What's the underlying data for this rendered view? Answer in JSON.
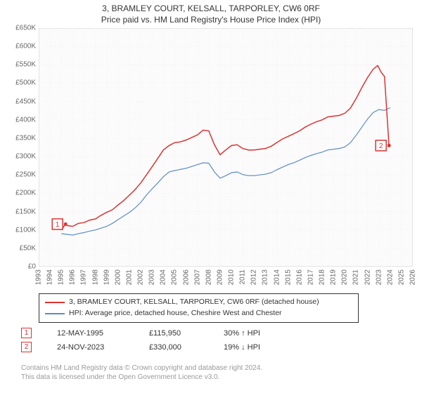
{
  "title_line1": "3, BRAMLEY COURT, KELSALL, TARPORLEY, CW6 0RF",
  "title_line2": "Price paid vs. HM Land Registry's House Price Index (HPI)",
  "chart": {
    "type": "line",
    "background_color": "#ffffff",
    "plot_fill": "#fbfbfb",
    "grid_color": "#f0f0f0",
    "grid_dash": "1 3",
    "border_color": "#cccccc",
    "axis_font_size": 10,
    "axis_color": "#666666",
    "xlim": [
      1993,
      2026
    ],
    "ylim": [
      0,
      650000
    ],
    "ytick_step": 50000,
    "ytick_labels": [
      "£0",
      "£50K",
      "£100K",
      "£150K",
      "£200K",
      "£250K",
      "£300K",
      "£350K",
      "£400K",
      "£450K",
      "£500K",
      "£550K",
      "£600K",
      "£650K"
    ],
    "xtick_step": 1,
    "xtick_labels": [
      "1993",
      "1994",
      "1995",
      "1996",
      "1997",
      "1998",
      "1999",
      "2000",
      "2001",
      "2002",
      "2003",
      "2004",
      "2005",
      "2006",
      "2007",
      "2008",
      "2009",
      "2010",
      "2011",
      "2012",
      "2013",
      "2014",
      "2015",
      "2016",
      "2017",
      "2018",
      "2019",
      "2020",
      "2021",
      "2022",
      "2023",
      "2024",
      "2025",
      "2026"
    ],
    "series": [
      {
        "name": "property",
        "label": "3, BRAMLEY COURT, KELSALL, TARPORLEY, CW6 0RF (detached house)",
        "color": "#dc3333",
        "line_width": 1.5,
        "data": [
          [
            1995.0,
            100000
          ],
          [
            1995.37,
            115950
          ],
          [
            1995.5,
            112000
          ],
          [
            1996.0,
            110000
          ],
          [
            1996.5,
            118000
          ],
          [
            1997.0,
            120000
          ],
          [
            1997.5,
            127000
          ],
          [
            1998.0,
            130000
          ],
          [
            1998.5,
            140000
          ],
          [
            1999.0,
            148000
          ],
          [
            1999.5,
            155000
          ],
          [
            2000.0,
            168000
          ],
          [
            2000.5,
            180000
          ],
          [
            2001.0,
            195000
          ],
          [
            2001.5,
            210000
          ],
          [
            2002.0,
            228000
          ],
          [
            2002.5,
            250000
          ],
          [
            2003.0,
            272000
          ],
          [
            2003.5,
            295000
          ],
          [
            2004.0,
            318000
          ],
          [
            2004.5,
            330000
          ],
          [
            2005.0,
            338000
          ],
          [
            2005.5,
            340000
          ],
          [
            2006.0,
            345000
          ],
          [
            2006.5,
            352000
          ],
          [
            2007.0,
            359000
          ],
          [
            2007.5,
            372000
          ],
          [
            2008.0,
            370000
          ],
          [
            2008.5,
            332000
          ],
          [
            2009.0,
            305000
          ],
          [
            2009.5,
            318000
          ],
          [
            2010.0,
            330000
          ],
          [
            2010.5,
            332000
          ],
          [
            2011.0,
            322000
          ],
          [
            2011.5,
            318000
          ],
          [
            2012.0,
            318000
          ],
          [
            2012.5,
            320000
          ],
          [
            2013.0,
            322000
          ],
          [
            2013.5,
            328000
          ],
          [
            2014.0,
            338000
          ],
          [
            2014.5,
            348000
          ],
          [
            2015.0,
            355000
          ],
          [
            2015.5,
            362000
          ],
          [
            2016.0,
            370000
          ],
          [
            2016.5,
            380000
          ],
          [
            2017.0,
            388000
          ],
          [
            2017.5,
            395000
          ],
          [
            2018.0,
            400000
          ],
          [
            2018.5,
            408000
          ],
          [
            2019.0,
            410000
          ],
          [
            2019.5,
            412000
          ],
          [
            2020.0,
            418000
          ],
          [
            2020.5,
            432000
          ],
          [
            2021.0,
            458000
          ],
          [
            2021.5,
            488000
          ],
          [
            2022.0,
            515000
          ],
          [
            2022.5,
            538000
          ],
          [
            2022.9,
            548000
          ],
          [
            2023.2,
            530000
          ],
          [
            2023.5,
            518000
          ],
          [
            2023.9,
            330000
          ]
        ],
        "markers": [
          {
            "x": 1995.37,
            "y": 115950,
            "label": "1"
          },
          {
            "x": 2023.9,
            "y": 330000,
            "label": "2"
          }
        ]
      },
      {
        "name": "hpi",
        "label": "HPI: Average price, detached house, Cheshire West and Chester",
        "color": "#5b8cc7",
        "line_width": 1.2,
        "data": [
          [
            1995.0,
            90000
          ],
          [
            1995.5,
            88000
          ],
          [
            1996.0,
            86000
          ],
          [
            1996.5,
            90000
          ],
          [
            1997.0,
            93000
          ],
          [
            1997.5,
            97000
          ],
          [
            1998.0,
            100000
          ],
          [
            1998.5,
            105000
          ],
          [
            1999.0,
            110000
          ],
          [
            1999.5,
            118000
          ],
          [
            2000.0,
            128000
          ],
          [
            2000.5,
            138000
          ],
          [
            2001.0,
            148000
          ],
          [
            2001.5,
            160000
          ],
          [
            2002.0,
            175000
          ],
          [
            2002.5,
            195000
          ],
          [
            2003.0,
            212000
          ],
          [
            2003.5,
            228000
          ],
          [
            2004.0,
            245000
          ],
          [
            2004.5,
            258000
          ],
          [
            2005.0,
            262000
          ],
          [
            2005.5,
            265000
          ],
          [
            2006.0,
            268000
          ],
          [
            2006.5,
            273000
          ],
          [
            2007.0,
            278000
          ],
          [
            2007.5,
            283000
          ],
          [
            2008.0,
            282000
          ],
          [
            2008.5,
            258000
          ],
          [
            2009.0,
            241000
          ],
          [
            2009.5,
            248000
          ],
          [
            2010.0,
            256000
          ],
          [
            2010.5,
            258000
          ],
          [
            2011.0,
            251000
          ],
          [
            2011.5,
            248000
          ],
          [
            2012.0,
            248000
          ],
          [
            2012.5,
            250000
          ],
          [
            2013.0,
            252000
          ],
          [
            2013.5,
            256000
          ],
          [
            2014.0,
            264000
          ],
          [
            2014.5,
            271000
          ],
          [
            2015.0,
            278000
          ],
          [
            2015.5,
            283000
          ],
          [
            2016.0,
            290000
          ],
          [
            2016.5,
            297000
          ],
          [
            2017.0,
            303000
          ],
          [
            2017.5,
            308000
          ],
          [
            2018.0,
            312000
          ],
          [
            2018.5,
            318000
          ],
          [
            2019.0,
            320000
          ],
          [
            2019.5,
            322000
          ],
          [
            2020.0,
            326000
          ],
          [
            2020.5,
            338000
          ],
          [
            2021.0,
            358000
          ],
          [
            2021.5,
            380000
          ],
          [
            2022.0,
            402000
          ],
          [
            2022.5,
            420000
          ],
          [
            2023.0,
            428000
          ],
          [
            2023.5,
            426000
          ],
          [
            2024.0,
            433000
          ]
        ]
      }
    ]
  },
  "legend": {
    "border_color": "#333333",
    "font_size": 10.5
  },
  "data_points": [
    {
      "n": "1",
      "date": "12-MAY-1995",
      "price": "£115,950",
      "pct": "30% ↑ HPI"
    },
    {
      "n": "2",
      "date": "24-NOV-2023",
      "price": "£330,000",
      "pct": "19% ↓ HPI"
    }
  ],
  "marker_style": {
    "border_color": "#dc3333",
    "text_color": "#dc3333",
    "size": 15,
    "font_size": 10
  },
  "footer_line1": "Contains HM Land Registry data © Crown copyright and database right 2024.",
  "footer_line2": "This data is licensed under the Open Government Licence v3.0.",
  "footer_color": "#999999"
}
